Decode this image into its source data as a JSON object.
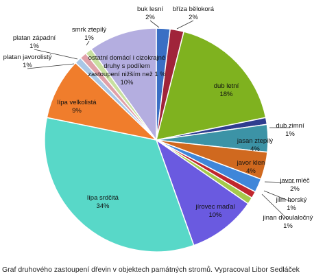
{
  "chart_data": {
    "type": "pie",
    "caption": "Graf druhového zastoupení dřevin v objektech památných stromů. Vypracoval Libor Sedláček",
    "categories": [
      "buk lesní",
      "bříza bělokorá",
      "dub letní",
      "dub zimní",
      "jasan ztepilý",
      "javor klen",
      "javor mléč",
      "jilm horský",
      "jinan dvoulaločný",
      "jírovec maďal",
      "lípa srdčitá",
      "lípa velkolistá",
      "platan javorolistý",
      "platan západní",
      "smrk ztepilý",
      "ostatní domácí i cizokrajné druhy s podílem zastoupení nižším než 1 %"
    ],
    "values": [
      2,
      2,
      18,
      1,
      4,
      4,
      2,
      1,
      1,
      10,
      34,
      9,
      1,
      1,
      1,
      10
    ],
    "value_labels": [
      "2%",
      "2%",
      "18%",
      "1%",
      "4%",
      "4%",
      "2%",
      "1%",
      "1%",
      "10%",
      "34%",
      "9%",
      "1%",
      "1%",
      "1%",
      "10%"
    ],
    "colors": [
      "#3a6fc4",
      "#a0243a",
      "#7fb21f",
      "#2f3d8f",
      "#3c93a6",
      "#d0691f",
      "#3f86d9",
      "#c0272d",
      "#a4c94a",
      "#6a5ae0",
      "#58d8c8",
      "#f07d2c",
      "#a9c7e6",
      "#e0a0a8",
      "#c8e0a0",
      "#b4aee0"
    ]
  }
}
